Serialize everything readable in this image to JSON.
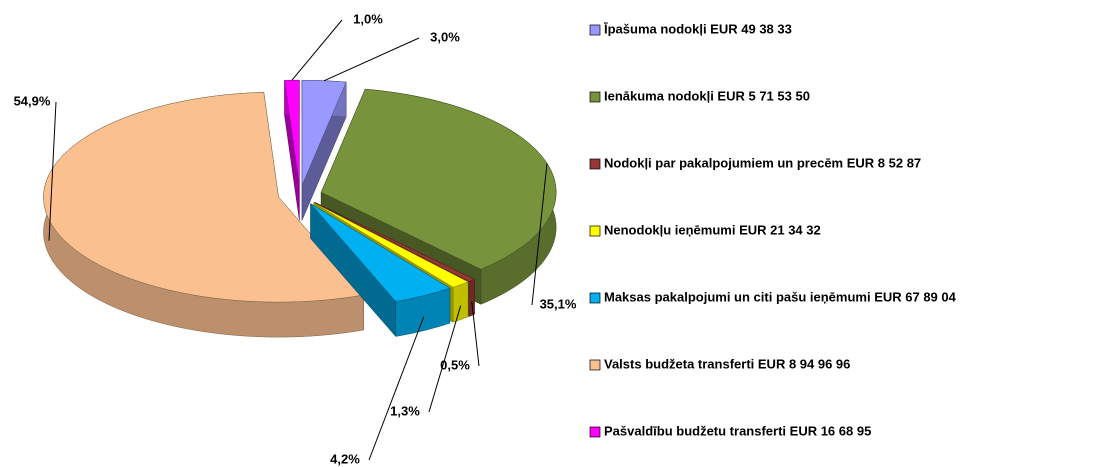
{
  "chart_data": {
    "type": "pie",
    "categories": [
      "Īpašuma nodokļi EUR 49 38 33",
      "Ienākuma nodokļi EUR 5 71 53 50",
      "Nodokļi par pakalpojumiem un precēm EUR 8 52 87",
      "Nenodokļu ieņēmumi EUR 21 34 32",
      "Maksas pakalpojumi un citi pašu ieņēmumi EUR 67 89 04",
      "Valsts budžeta transferti EUR 8 94 96 96",
      "Pašvaldību budžetu transferti EUR 16 68 95"
    ],
    "values": [
      3.0,
      35.1,
      0.5,
      1.3,
      4.2,
      54.9,
      1.0
    ],
    "value_labels": [
      "3,0%",
      "35,1%",
      "0,5%",
      "1,3%",
      "4,2%",
      "54,9%",
      "1,0%"
    ],
    "colors": [
      "#9999ff",
      "#77933c",
      "#953735",
      "#ffff00",
      "#00b0f0",
      "#fac090",
      "#ff00ff"
    ],
    "legend": "right"
  }
}
